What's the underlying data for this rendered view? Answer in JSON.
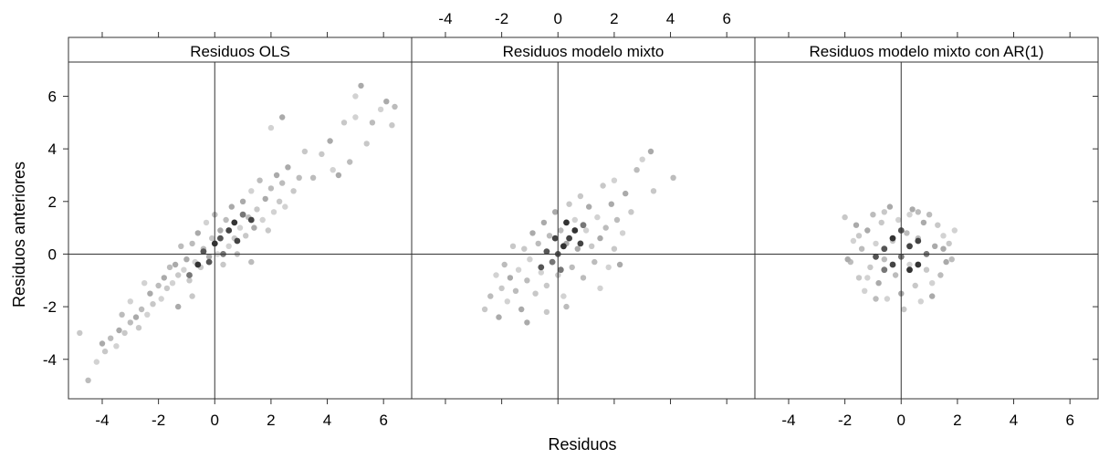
{
  "chart_data": {
    "type": "scatter",
    "xlabel": "Residuos",
    "ylabel": "Residuos anteriores",
    "xlim": [
      -5.2,
      7.0
    ],
    "ylim": [
      -5.5,
      7.3
    ],
    "x_ticks": [
      -4,
      -2,
      0,
      2,
      4,
      6
    ],
    "y_ticks": [
      -4,
      -2,
      0,
      2,
      4,
      6
    ],
    "x_tick_labels": [
      "-4",
      "-2",
      "0",
      "2",
      "4",
      "6"
    ],
    "y_tick_labels": [
      "-4",
      "-2",
      "0",
      "2",
      "4",
      "6"
    ],
    "reference_lines": {
      "x": 0,
      "y": 0
    },
    "grid": false,
    "panels": [
      {
        "strip": "Residuos OLS",
        "x_axis_labels_at": "bottom",
        "points": [
          [
            -4.8,
            -3.0
          ],
          [
            -4.5,
            -4.8
          ],
          [
            -4.2,
            -4.1
          ],
          [
            -4.0,
            -3.4
          ],
          [
            -3.9,
            -3.7
          ],
          [
            -3.7,
            -3.2
          ],
          [
            -3.5,
            -3.5
          ],
          [
            -3.4,
            -2.9
          ],
          [
            -3.2,
            -3.0
          ],
          [
            -3.0,
            -2.6
          ],
          [
            -3.0,
            -1.8
          ],
          [
            -2.8,
            -2.4
          ],
          [
            -2.7,
            -2.8
          ],
          [
            -2.6,
            -2.1
          ],
          [
            -2.4,
            -2.3
          ],
          [
            -2.3,
            -1.5
          ],
          [
            -2.2,
            -1.9
          ],
          [
            -2.0,
            -1.2
          ],
          [
            -1.9,
            -1.7
          ],
          [
            -1.8,
            -0.9
          ],
          [
            -1.7,
            -1.3
          ],
          [
            -1.6,
            -0.5
          ],
          [
            -1.5,
            -1.1
          ],
          [
            -1.4,
            -0.4
          ],
          [
            -1.3,
            -0.8
          ],
          [
            -1.2,
            0.3
          ],
          [
            -1.1,
            -0.6
          ],
          [
            -1.0,
            -0.2
          ],
          [
            -0.9,
            -1.0
          ],
          [
            -0.8,
            0.4
          ],
          [
            -0.7,
            -0.3
          ],
          [
            -0.6,
            0.8
          ],
          [
            -0.5,
            -0.5
          ],
          [
            -0.4,
            0.2
          ],
          [
            -0.3,
            1.2
          ],
          [
            -0.2,
            -0.1
          ],
          [
            -0.1,
            0.6
          ],
          [
            0.0,
            1.5
          ],
          [
            0.1,
            0.0
          ],
          [
            0.2,
            0.9
          ],
          [
            0.3,
            -0.4
          ],
          [
            0.4,
            1.3
          ],
          [
            0.5,
            0.3
          ],
          [
            0.6,
            1.8
          ],
          [
            0.7,
            0.6
          ],
          [
            0.8,
            0.0
          ],
          [
            0.9,
            1.0
          ],
          [
            1.0,
            2.0
          ],
          [
            1.1,
            0.7
          ],
          [
            1.2,
            1.4
          ],
          [
            1.3,
            2.4
          ],
          [
            1.4,
            1.0
          ],
          [
            1.5,
            1.7
          ],
          [
            1.6,
            2.8
          ],
          [
            1.7,
            1.3
          ],
          [
            1.8,
            2.1
          ],
          [
            1.9,
            0.9
          ],
          [
            2.0,
            2.5
          ],
          [
            2.1,
            1.6
          ],
          [
            2.2,
            3.0
          ],
          [
            2.3,
            2.0
          ],
          [
            2.4,
            2.7
          ],
          [
            2.5,
            1.8
          ],
          [
            2.6,
            3.3
          ],
          [
            2.8,
            2.4
          ],
          [
            3.0,
            2.9
          ],
          [
            2.0,
            4.8
          ],
          [
            2.4,
            5.2
          ],
          [
            3.2,
            3.9
          ],
          [
            3.5,
            2.9
          ],
          [
            4.2,
            3.2
          ],
          [
            4.4,
            3.0
          ],
          [
            4.6,
            5.0
          ],
          [
            4.8,
            3.5
          ],
          [
            5.0,
            5.2
          ],
          [
            5.2,
            6.4
          ],
          [
            5.4,
            4.2
          ],
          [
            5.6,
            5.0
          ],
          [
            5.9,
            5.5
          ],
          [
            6.1,
            5.8
          ],
          [
            6.3,
            4.9
          ],
          [
            6.4,
            5.6
          ],
          [
            5.0,
            6.0
          ],
          [
            4.1,
            4.3
          ],
          [
            3.8,
            3.8
          ],
          [
            -3.3,
            -2.3
          ],
          [
            -2.5,
            -1.1
          ],
          [
            -1.3,
            -2.0
          ],
          [
            -0.8,
            -1.6
          ],
          [
            1.3,
            -0.3
          ]
        ],
        "dense_points": [
          [
            -0.4,
            0.1
          ],
          [
            0.0,
            0.4
          ],
          [
            0.3,
            0.0
          ],
          [
            0.5,
            0.9
          ],
          [
            -0.2,
            -0.3
          ],
          [
            0.7,
            1.2
          ],
          [
            1.0,
            1.5
          ],
          [
            1.3,
            1.3
          ],
          [
            0.2,
            0.6
          ],
          [
            -0.6,
            -0.4
          ],
          [
            -0.9,
            -0.8
          ],
          [
            0.8,
            0.5
          ]
        ]
      },
      {
        "strip": "Residuos modelo mixto",
        "x_axis_labels_at": "top",
        "points": [
          [
            -2.6,
            -2.1
          ],
          [
            -2.4,
            -1.6
          ],
          [
            -2.2,
            -0.8
          ],
          [
            -2.1,
            -2.4
          ],
          [
            -2.0,
            -1.3
          ],
          [
            -1.9,
            -0.4
          ],
          [
            -1.8,
            -1.8
          ],
          [
            -1.7,
            -0.9
          ],
          [
            -1.6,
            0.3
          ],
          [
            -1.5,
            -1.4
          ],
          [
            -1.4,
            -0.6
          ],
          [
            -1.3,
            -2.1
          ],
          [
            -1.2,
            0.2
          ],
          [
            -1.1,
            -1.0
          ],
          [
            -1.0,
            -0.2
          ],
          [
            -0.9,
            0.8
          ],
          [
            -0.8,
            -1.5
          ],
          [
            -0.7,
            0.4
          ],
          [
            -0.6,
            -0.7
          ],
          [
            -0.5,
            1.2
          ],
          [
            -0.4,
            -1.2
          ],
          [
            -0.3,
            0.7
          ],
          [
            -0.2,
            -0.3
          ],
          [
            -0.1,
            1.6
          ],
          [
            0.0,
            -0.8
          ],
          [
            0.1,
            0.9
          ],
          [
            0.2,
            -1.6
          ],
          [
            0.3,
            0.4
          ],
          [
            0.4,
            1.9
          ],
          [
            0.5,
            -0.5
          ],
          [
            0.6,
            1.3
          ],
          [
            0.7,
            0.2
          ],
          [
            0.8,
            2.2
          ],
          [
            0.9,
            -0.9
          ],
          [
            1.0,
            0.9
          ],
          [
            1.1,
            1.8
          ],
          [
            1.2,
            0.3
          ],
          [
            1.3,
            -0.3
          ],
          [
            1.4,
            1.4
          ],
          [
            1.5,
            0.6
          ],
          [
            1.6,
            2.6
          ],
          [
            1.7,
            1.0
          ],
          [
            1.8,
            -0.5
          ],
          [
            1.9,
            1.9
          ],
          [
            2.0,
            0.2
          ],
          [
            2.1,
            1.3
          ],
          [
            2.3,
            0.8
          ],
          [
            2.4,
            2.3
          ],
          [
            2.6,
            1.6
          ],
          [
            2.8,
            3.2
          ],
          [
            3.0,
            3.6
          ],
          [
            3.3,
            3.9
          ],
          [
            3.4,
            2.4
          ],
          [
            4.1,
            2.9
          ],
          [
            2.0,
            2.8
          ],
          [
            -1.1,
            -2.6
          ],
          [
            -0.4,
            -2.2
          ],
          [
            0.3,
            -2.0
          ],
          [
            1.5,
            -1.3
          ],
          [
            2.2,
            -0.4
          ]
        ],
        "dense_points": [
          [
            0.0,
            0.0
          ],
          [
            0.2,
            0.3
          ],
          [
            -0.2,
            -0.3
          ],
          [
            0.4,
            0.6
          ],
          [
            -0.4,
            0.1
          ],
          [
            0.6,
            0.9
          ],
          [
            0.1,
            -0.6
          ],
          [
            0.8,
            0.4
          ],
          [
            -0.6,
            -0.5
          ],
          [
            0.3,
            1.2
          ],
          [
            0.9,
            1.1
          ],
          [
            -0.1,
            0.6
          ]
        ]
      },
      {
        "strip": "Residuos modelo mixto con AR(1)",
        "x_axis_labels_at": "bottom",
        "points": [
          [
            -2.0,
            1.4
          ],
          [
            -1.8,
            -0.3
          ],
          [
            -1.7,
            0.5
          ],
          [
            -1.6,
            1.1
          ],
          [
            -1.5,
            -0.9
          ],
          [
            -1.4,
            0.2
          ],
          [
            -1.3,
            -1.4
          ],
          [
            -1.2,
            0.9
          ],
          [
            -1.1,
            -0.5
          ],
          [
            -1.0,
            1.5
          ],
          [
            -0.9,
            0.4
          ],
          [
            -0.8,
            -1.1
          ],
          [
            -0.7,
            1.2
          ],
          [
            -0.6,
            -0.2
          ],
          [
            -0.5,
            -1.7
          ],
          [
            -0.4,
            1.8
          ],
          [
            -0.3,
            0.5
          ],
          [
            -0.2,
            -0.8
          ],
          [
            -0.1,
            1.3
          ],
          [
            0.0,
            -1.5
          ],
          [
            0.1,
            -2.1
          ],
          [
            0.2,
            0.8
          ],
          [
            0.3,
            -0.4
          ],
          [
            0.4,
            1.7
          ],
          [
            0.5,
            -1.2
          ],
          [
            0.6,
            0.6
          ],
          [
            0.7,
            -1.8
          ],
          [
            0.8,
            1.2
          ],
          [
            0.9,
            -0.6
          ],
          [
            1.0,
            1.5
          ],
          [
            1.1,
            -1.1
          ],
          [
            1.2,
            0.3
          ],
          [
            1.3,
            1.1
          ],
          [
            1.4,
            -0.8
          ],
          [
            1.5,
            0.7
          ],
          [
            1.6,
            -0.3
          ],
          [
            1.7,
            0.4
          ],
          [
            1.8,
            -0.2
          ],
          [
            1.9,
            0.9
          ],
          [
            -1.9,
            -0.2
          ],
          [
            -1.5,
            0.7
          ],
          [
            -0.9,
            -1.7
          ],
          [
            0.3,
            1.5
          ],
          [
            1.1,
            -1.6
          ],
          [
            -0.6,
            1.6
          ],
          [
            0.6,
            1.6
          ],
          [
            -1.2,
            -0.9
          ],
          [
            1.5,
            0.2
          ]
        ],
        "dense_points": [
          [
            -0.6,
            0.2
          ],
          [
            -0.3,
            0.6
          ],
          [
            0.0,
            -0.1
          ],
          [
            0.3,
            0.3
          ],
          [
            -0.9,
            -0.1
          ],
          [
            0.6,
            -0.4
          ],
          [
            0.9,
            0.0
          ],
          [
            -0.3,
            -0.4
          ],
          [
            0.0,
            0.9
          ],
          [
            0.3,
            -0.6
          ],
          [
            -0.6,
            -0.6
          ],
          [
            0.6,
            0.5
          ]
        ]
      }
    ]
  }
}
